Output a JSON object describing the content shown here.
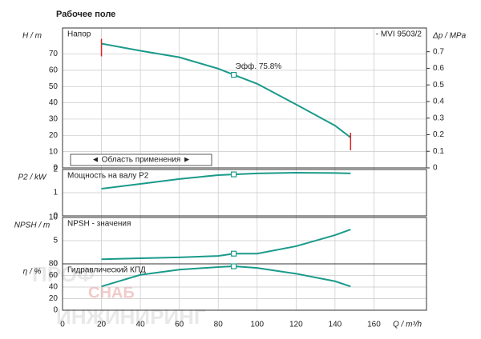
{
  "chart_data": [
    {
      "type": "line",
      "title": "Рабочее поле",
      "panel_label": "Напор",
      "model_label": "- MVI 9503/2",
      "y_label": "H / m",
      "y2_label": "Δp / MPa",
      "x": [
        20,
        40,
        60,
        80,
        88,
        100,
        120,
        140,
        148
      ],
      "series": [
        {
          "color": "#1a9a8a",
          "values": [
            76.4,
            72,
            68,
            61,
            57.2,
            51.7,
            39,
            26,
            18.7
          ]
        }
      ],
      "ylim": [
        0,
        86
      ],
      "yticks": [
        0,
        10,
        20,
        30,
        40,
        50,
        60,
        70
      ],
      "y2lim": [
        0,
        0.843
      ],
      "y2ticks": [
        0,
        0.1,
        0.2,
        0.3,
        0.4,
        0.5,
        0.6,
        0.7
      ],
      "annotation": "Эфф.  75.8%",
      "operating_index": 4,
      "application_range": {
        "label": "◄ Область применения ►",
        "x": [
          20,
          148
        ],
        "color": "#e02020"
      },
      "grid": true
    },
    {
      "type": "line",
      "panel_label": "Мощность на валу P2",
      "y_label": "P2 / kW",
      "x": [
        20,
        40,
        60,
        80,
        88,
        100,
        120,
        140,
        148
      ],
      "series": [
        {
          "color": "#1a9a8a",
          "values": [
            1.17,
            1.38,
            1.59,
            1.76,
            1.79,
            1.83,
            1.86,
            1.85,
            1.83
          ]
        }
      ],
      "ylim": [
        0,
        2
      ],
      "yticks": [
        0,
        1,
        2
      ],
      "operating_index": 4,
      "grid": true
    },
    {
      "type": "line",
      "panel_label": "NPSH - значения",
      "y_label": "NPSH / m",
      "x": [
        20,
        40,
        60,
        80,
        88,
        100,
        120,
        140,
        148
      ],
      "series": [
        {
          "color": "#1a9a8a",
          "values": [
            1,
            1.2,
            1.4,
            1.7,
            2.2,
            2.2,
            3.8,
            6.2,
            7.4
          ]
        }
      ],
      "ylim": [
        0,
        10
      ],
      "yticks": [
        0,
        5,
        10
      ],
      "operating_index": 4,
      "grid": true
    },
    {
      "type": "line",
      "panel_label": "Гидравлический КПД",
      "y_label": "η / %",
      "x_label": "Q / m³/h",
      "x": [
        20,
        40,
        60,
        80,
        88,
        100,
        120,
        140,
        148
      ],
      "series": [
        {
          "color": "#1a9a8a",
          "values": [
            41,
            61,
            70,
            74.5,
            75.8,
            73,
            63,
            50,
            41
          ]
        }
      ],
      "ylim": [
        0,
        80
      ],
      "yticks": [
        0,
        20,
        40,
        60,
        80
      ],
      "xlim": [
        0,
        187
      ],
      "xticks": [
        0,
        20,
        40,
        60,
        80,
        100,
        120,
        140,
        160
      ],
      "operating_index": 4,
      "grid": true
    }
  ],
  "watermark": [
    "ПРОФ",
    "СНАБ",
    "ИНЖИНИРИНГ"
  ]
}
